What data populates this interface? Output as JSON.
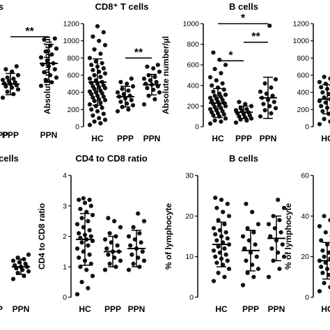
{
  "chart_data": [
    {
      "id": "p1",
      "type": "scatter",
      "title": "T cells",
      "ylabel": "",
      "yticks": [],
      "ylim": [
        0,
        1600
      ],
      "categories": [
        "PPP",
        "PPN"
      ],
      "groups": [
        {
          "name": "PPP",
          "mean": 650,
          "sd": 180,
          "values": [
            420,
            480,
            520,
            560,
            590,
            610,
            630,
            650,
            660,
            680,
            700,
            720,
            740,
            760,
            800,
            860,
            900,
            950
          ]
        },
        {
          "name": "PPN",
          "mean": 1000,
          "sd": 320,
          "values": [
            620,
            680,
            720,
            760,
            800,
            850,
            900,
            950,
            980,
            1000,
            1050,
            1100,
            1150,
            1200,
            1250,
            1300,
            1400,
            1420
          ]
        }
      ],
      "significance": [
        {
          "from": 0,
          "to": 1,
          "label": "**",
          "level": 1450
        }
      ]
    },
    {
      "id": "p2",
      "type": "scatter",
      "title": "CD8⁺ T cells",
      "ylabel": "Absolute number/µl",
      "yticks": [
        "0",
        "200",
        "400",
        "600",
        "800",
        "1000",
        "1200"
      ],
      "ylim": [
        0,
        1200
      ],
      "categories": [
        "HC",
        "PPP",
        "PPN"
      ],
      "groups": [
        {
          "name": "HC",
          "mean": 520,
          "sd": 270,
          "values": [
            20,
            40,
            60,
            80,
            100,
            130,
            150,
            180,
            200,
            220,
            240,
            260,
            280,
            300,
            310,
            320,
            340,
            350,
            360,
            380,
            390,
            400,
            410,
            420,
            440,
            450,
            460,
            470,
            480,
            500,
            510,
            520,
            540,
            560,
            580,
            600,
            620,
            640,
            660,
            680,
            700,
            720,
            740,
            760,
            800,
            850,
            900,
            950,
            1000,
            1050,
            1100,
            1170
          ]
        },
        {
          "name": "PPP",
          "mean": 350,
          "sd": 120,
          "values": [
            180,
            200,
            230,
            250,
            270,
            290,
            310,
            330,
            350,
            360,
            380,
            400,
            420,
            440,
            470,
            500,
            520,
            560
          ]
        },
        {
          "name": "PPN",
          "mean": 490,
          "sd": 120,
          "values": [
            260,
            320,
            360,
            400,
            430,
            450,
            470,
            490,
            500,
            520,
            540,
            560,
            580,
            600,
            640,
            680,
            700,
            720
          ]
        }
      ],
      "significance": [
        {
          "from": 1,
          "to": 2,
          "label": "**",
          "level": 800
        }
      ]
    },
    {
      "id": "p3",
      "type": "scatter",
      "title": "B cells",
      "ylabel": "Absolute number/µl",
      "yticks": [
        "0",
        "200",
        "400",
        "600",
        "800",
        "1000"
      ],
      "ylim": [
        0,
        1000
      ],
      "categories": [
        "HC",
        "PPP",
        "PPN"
      ],
      "groups": [
        {
          "name": "HC",
          "mean": 230,
          "sd": 140,
          "values": [
            30,
            50,
            60,
            80,
            100,
            110,
            120,
            130,
            140,
            150,
            160,
            170,
            180,
            190,
            200,
            210,
            220,
            230,
            240,
            250,
            260,
            270,
            280,
            290,
            300,
            310,
            320,
            340,
            360,
            380,
            400,
            420,
            450,
            480,
            520,
            560,
            600,
            650,
            720
          ]
        },
        {
          "name": "PPP",
          "mean": 140,
          "sd": 60,
          "values": [
            40,
            60,
            70,
            80,
            90,
            100,
            110,
            120,
            130,
            140,
            150,
            160,
            170,
            180,
            200,
            220,
            240
          ]
        },
        {
          "name": "PPN",
          "mean": 280,
          "sd": 200,
          "values": [
            100,
            130,
            160,
            180,
            200,
            220,
            240,
            260,
            280,
            300,
            320,
            340,
            380,
            420,
            460,
            980
          ]
        }
      ],
      "significance": [
        {
          "from": 0,
          "to": 1,
          "label": "*",
          "level": 640
        },
        {
          "from": 1,
          "to": 2,
          "label": "**",
          "level": 820
        },
        {
          "from": 0,
          "to": 2,
          "label": "*",
          "level": 1000
        }
      ]
    },
    {
      "id": "p4",
      "type": "scatter",
      "title": "",
      "ylabel": "",
      "yticks": [
        "0",
        "200",
        "400",
        "600",
        "800",
        "1000",
        "1200"
      ],
      "ylim": [
        0,
        1200
      ],
      "categories": [
        "HC"
      ],
      "groups": [
        {
          "name": "HC",
          "mean": 320,
          "sd": 170,
          "values": [
            30,
            60,
            90,
            120,
            150,
            180,
            200,
            220,
            240,
            260,
            280,
            300,
            320,
            340,
            360,
            380,
            400,
            420,
            440,
            460,
            480,
            500,
            520,
            560,
            580
          ]
        }
      ],
      "significance": []
    },
    {
      "id": "p5",
      "type": "scatter",
      "title": "cells",
      "ylabel": "",
      "yticks": [],
      "ylim": [
        0,
        4
      ],
      "categories": [
        "PPN"
      ],
      "groups": [
        {
          "name": "PPN",
          "mean": 1.0,
          "sd": 0.25,
          "values": [
            0.6,
            0.7,
            0.8,
            0.85,
            0.9,
            0.95,
            1.0,
            1.0,
            1.05,
            1.1,
            1.15,
            1.2,
            1.25,
            1.3,
            1.4
          ]
        }
      ],
      "significance": []
    },
    {
      "id": "p6",
      "type": "scatter",
      "title": "CD4 to CD8 ratio",
      "ylabel": "CD4 to CD8 ratio",
      "yticks": [
        "0",
        "1",
        "2",
        "3",
        "4"
      ],
      "ylim": [
        0,
        4
      ],
      "categories": [
        "HC",
        "PPP",
        "PPN"
      ],
      "groups": [
        {
          "name": "HC",
          "mean": 1.9,
          "sd": 0.85,
          "values": [
            0.1,
            0.3,
            0.5,
            0.7,
            0.9,
            1.0,
            1.1,
            1.2,
            1.3,
            1.4,
            1.5,
            1.6,
            1.7,
            1.8,
            1.85,
            1.9,
            1.95,
            2.0,
            2.05,
            2.1,
            2.2,
            2.3,
            2.4,
            2.5,
            2.6,
            2.7,
            2.8,
            2.9,
            3.0,
            3.1,
            3.2,
            3.2,
            3.25
          ]
        },
        {
          "name": "PPP",
          "mean": 1.5,
          "sd": 0.5,
          "values": [
            0.9,
            1.0,
            1.1,
            1.2,
            1.3,
            1.4,
            1.5,
            1.5,
            1.6,
            1.7,
            1.8,
            1.9,
            2.0,
            2.1,
            2.3,
            2.5,
            2.6
          ]
        },
        {
          "name": "PPN",
          "mean": 1.6,
          "sd": 0.6,
          "values": [
            0.9,
            1.0,
            1.1,
            1.2,
            1.3,
            1.4,
            1.5,
            1.6,
            1.7,
            1.8,
            1.9,
            2.0,
            2.1,
            2.3,
            2.5,
            2.75
          ]
        }
      ],
      "significance": []
    },
    {
      "id": "p7",
      "type": "scatter",
      "title": "B cells",
      "ylabel": "% of lymphocyte",
      "yticks": [
        "0",
        "10",
        "20",
        "30"
      ],
      "ylim": [
        0,
        30
      ],
      "categories": [
        "HC",
        "PPP",
        "PPN"
      ],
      "groups": [
        {
          "name": "HC",
          "mean": 13,
          "sd": 5.5,
          "values": [
            4,
            5,
            6,
            7,
            8,
            8.5,
            9,
            9.5,
            10,
            10.5,
            11,
            11.5,
            12,
            12.5,
            13,
            13.5,
            14,
            14.5,
            15,
            15.5,
            16,
            16.5,
            17,
            18,
            19,
            20,
            21,
            22,
            23,
            24,
            24.5
          ]
        },
        {
          "name": "PPP",
          "mean": 11.5,
          "sd": 5,
          "values": [
            3,
            5,
            6,
            7,
            8,
            9,
            10,
            11,
            12,
            13,
            14,
            15,
            16,
            17,
            18,
            21,
            23
          ]
        },
        {
          "name": "PPN",
          "mean": 14.5,
          "sd": 5.5,
          "values": [
            5,
            7,
            9,
            10,
            11,
            12,
            13,
            14,
            15,
            16,
            17,
            18,
            19,
            20,
            22,
            24
          ]
        }
      ],
      "significance": []
    },
    {
      "id": "p8",
      "type": "scatter",
      "title": "",
      "ylabel": "% of lymphocyte",
      "yticks": [
        "0",
        "20",
        "40",
        "60"
      ],
      "ylim": [
        0,
        60
      ],
      "categories": [
        "HC"
      ],
      "groups": [
        {
          "name": "HC",
          "mean": 18,
          "sd": 9,
          "values": [
            3,
            5,
            7,
            9,
            11,
            12,
            13,
            14,
            15,
            16,
            17,
            18,
            19,
            20,
            21,
            22,
            23,
            24,
            26,
            28,
            30,
            32,
            35,
            38,
            40
          ]
        }
      ],
      "significance": []
    }
  ]
}
